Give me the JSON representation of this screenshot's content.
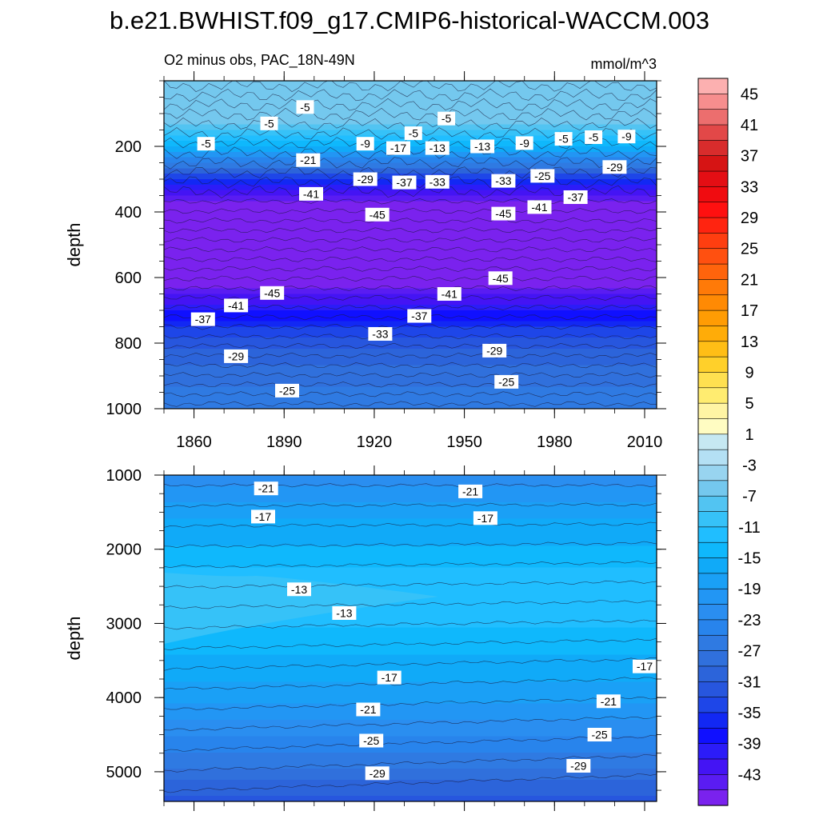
{
  "figure": {
    "title": "b.e21.BWHIST.f09_g17.CMIP6-historical-WACCM.003"
  },
  "chart_data": [
    {
      "type": "heatmap",
      "name": "upper-panel",
      "subtitle_left": "O2 minus obs, PAC_18N-49N",
      "subtitle_right": "mmol/m^3",
      "xlabel": "",
      "ylabel": "depth",
      "xlim": [
        1850,
        2014
      ],
      "ylim": [
        1000,
        0
      ],
      "x_ticks": [
        "1860",
        "1890",
        "1920",
        "1950",
        "1980",
        "2010"
      ],
      "x_tick_values": [
        1860,
        1890,
        1920,
        1950,
        1980,
        2010
      ],
      "y_ticks": [
        "200",
        "400",
        "600",
        "800",
        "1000"
      ],
      "y_tick_values": [
        200,
        400,
        600,
        800,
        1000
      ],
      "depth_profile": [
        {
          "depth": 0,
          "value": -6
        },
        {
          "depth": 120,
          "value": -7
        },
        {
          "depth": 180,
          "value": -13
        },
        {
          "depth": 230,
          "value": -23
        },
        {
          "depth": 280,
          "value": -33
        },
        {
          "depth": 320,
          "value": -41
        },
        {
          "depth": 360,
          "value": -46
        },
        {
          "depth": 620,
          "value": -46
        },
        {
          "depth": 660,
          "value": -42
        },
        {
          "depth": 720,
          "value": -37
        },
        {
          "depth": 780,
          "value": -32
        },
        {
          "depth": 880,
          "value": -28
        },
        {
          "depth": 1000,
          "value": -25
        }
      ],
      "contour_labels": [
        {
          "text": "-5",
          "x": 1897,
          "depth": 80
        },
        {
          "text": "-5",
          "x": 1885,
          "depth": 130
        },
        {
          "text": "-5",
          "x": 1944,
          "depth": 115
        },
        {
          "text": "-5",
          "x": 1933,
          "depth": 160
        },
        {
          "text": "-5",
          "x": 1864,
          "depth": 192
        },
        {
          "text": "-9",
          "x": 1917,
          "depth": 192
        },
        {
          "text": "-9",
          "x": 1970,
          "depth": 190
        },
        {
          "text": "-5",
          "x": 1983,
          "depth": 177
        },
        {
          "text": "-5",
          "x": 1993,
          "depth": 172
        },
        {
          "text": "-9",
          "x": 2004,
          "depth": 170
        },
        {
          "text": "-21",
          "x": 1898,
          "depth": 242
        },
        {
          "text": "-17",
          "x": 1928,
          "depth": 205
        },
        {
          "text": "-13",
          "x": 1941,
          "depth": 205
        },
        {
          "text": "-13",
          "x": 1956,
          "depth": 200
        },
        {
          "text": "-29",
          "x": 1917,
          "depth": 300
        },
        {
          "text": "-37",
          "x": 1930,
          "depth": 310
        },
        {
          "text": "-33",
          "x": 1941,
          "depth": 308
        },
        {
          "text": "-33",
          "x": 1963,
          "depth": 305
        },
        {
          "text": "-25",
          "x": 1976,
          "depth": 290
        },
        {
          "text": "-29",
          "x": 2000,
          "depth": 263
        },
        {
          "text": "-41",
          "x": 1899,
          "depth": 345
        },
        {
          "text": "-37",
          "x": 1987,
          "depth": 355
        },
        {
          "text": "-41",
          "x": 1975,
          "depth": 385
        },
        {
          "text": "-45",
          "x": 1921,
          "depth": 408
        },
        {
          "text": "-45",
          "x": 1963,
          "depth": 405
        },
        {
          "text": "-45",
          "x": 1962,
          "depth": 602
        },
        {
          "text": "-45",
          "x": 1886,
          "depth": 647
        },
        {
          "text": "-41",
          "x": 1945,
          "depth": 650
        },
        {
          "text": "-41",
          "x": 1874,
          "depth": 685
        },
        {
          "text": "-37",
          "x": 1863,
          "depth": 727
        },
        {
          "text": "-37",
          "x": 1935,
          "depth": 717
        },
        {
          "text": "-33",
          "x": 1922,
          "depth": 772
        },
        {
          "text": "-29",
          "x": 1874,
          "depth": 840
        },
        {
          "text": "-29",
          "x": 1960,
          "depth": 823
        },
        {
          "text": "-25",
          "x": 1891,
          "depth": 945
        },
        {
          "text": "-25",
          "x": 1964,
          "depth": 918
        }
      ]
    },
    {
      "type": "heatmap",
      "name": "lower-panel",
      "xlabel": "",
      "ylabel": "depth",
      "xlim": [
        1850,
        2014
      ],
      "ylim": [
        5400,
        1000
      ],
      "y_ticks": [
        "1000",
        "2000",
        "3000",
        "4000",
        "5000"
      ],
      "y_tick_values": [
        1000,
        2000,
        3000,
        4000,
        5000
      ],
      "depth_profile": [
        {
          "depth": 1000,
          "value": -22
        },
        {
          "depth": 1400,
          "value": -18
        },
        {
          "depth": 1900,
          "value": -15
        },
        {
          "depth": 2400,
          "value": -12
        },
        {
          "depth": 2900,
          "value": -12.5
        },
        {
          "depth": 3400,
          "value": -15
        },
        {
          "depth": 3900,
          "value": -18
        },
        {
          "depth": 4400,
          "value": -22
        },
        {
          "depth": 4900,
          "value": -27
        },
        {
          "depth": 5400,
          "value": -32
        }
      ],
      "contour_labels": [
        {
          "text": "-21",
          "x": 1884,
          "depth": 1180
        },
        {
          "text": "-21",
          "x": 1952,
          "depth": 1220
        },
        {
          "text": "-17",
          "x": 1883,
          "depth": 1560
        },
        {
          "text": "-17",
          "x": 1957,
          "depth": 1580
        },
        {
          "text": "-13",
          "x": 1895,
          "depth": 2540
        },
        {
          "text": "-13",
          "x": 1910,
          "depth": 2860
        },
        {
          "text": "-17",
          "x": 1925,
          "depth": 3730
        },
        {
          "text": "-17",
          "x": 2010,
          "depth": 3580
        },
        {
          "text": "-21",
          "x": 1918,
          "depth": 4160
        },
        {
          "text": "-21",
          "x": 1998,
          "depth": 4050
        },
        {
          "text": "-25",
          "x": 1919,
          "depth": 4580
        },
        {
          "text": "-25",
          "x": 1995,
          "depth": 4500
        },
        {
          "text": "-29",
          "x": 1921,
          "depth": 5020
        },
        {
          "text": "-29",
          "x": 1988,
          "depth": 4920
        }
      ]
    }
  ],
  "colorbar": {
    "labels": [
      "45",
      "41",
      "37",
      "33",
      "29",
      "25",
      "21",
      "17",
      "13",
      "9",
      "5",
      "1",
      "-3",
      "-7",
      "-11",
      "-15",
      "-19",
      "-23",
      "-27",
      "-31",
      "-35",
      "-39",
      "-43"
    ],
    "levels": [
      -47,
      -45,
      -43,
      -41,
      -39,
      -37,
      -35,
      -33,
      -31,
      -29,
      -27,
      -25,
      -23,
      -21,
      -19,
      -17,
      -15,
      -13,
      -11,
      -9,
      -7,
      -5,
      -3,
      -1,
      1,
      3,
      5,
      7,
      9,
      11,
      13,
      15,
      17,
      19,
      21,
      23,
      25,
      27,
      29,
      31,
      33,
      35,
      37,
      39,
      41,
      43,
      45,
      47
    ],
    "colors": [
      "#7a22ee",
      "#5a1cf2",
      "#4414f4",
      "#2c1cf8",
      "#1010ff",
      "#1228f4",
      "#1e46e8",
      "#2756de",
      "#2c64da",
      "#3070dc",
      "#2f7ae2",
      "#2884ec",
      "#2a8ef0",
      "#2296f4",
      "#1aa0f6",
      "#10aaf8",
      "#0fb8fc",
      "#20beff",
      "#36c2f8",
      "#52c4f2",
      "#74c8ee",
      "#98d4f0",
      "#b4e0f4",
      "#c6e8f2",
      "#fffcc2",
      "#fff4a4",
      "#ffec70",
      "#ffe050",
      "#ffd02a",
      "#ffbe16",
      "#ffac08",
      "#ff9c04",
      "#ff8a04",
      "#ff7a08",
      "#ff640c",
      "#ff5010",
      "#ff3e10",
      "#ff2410",
      "#ff1010",
      "#f00c10",
      "#e40e14",
      "#d61414",
      "#d82c2c",
      "#e24848",
      "#ec6e6e",
      "#f68e8e",
      "#fcb0b0"
    ]
  }
}
